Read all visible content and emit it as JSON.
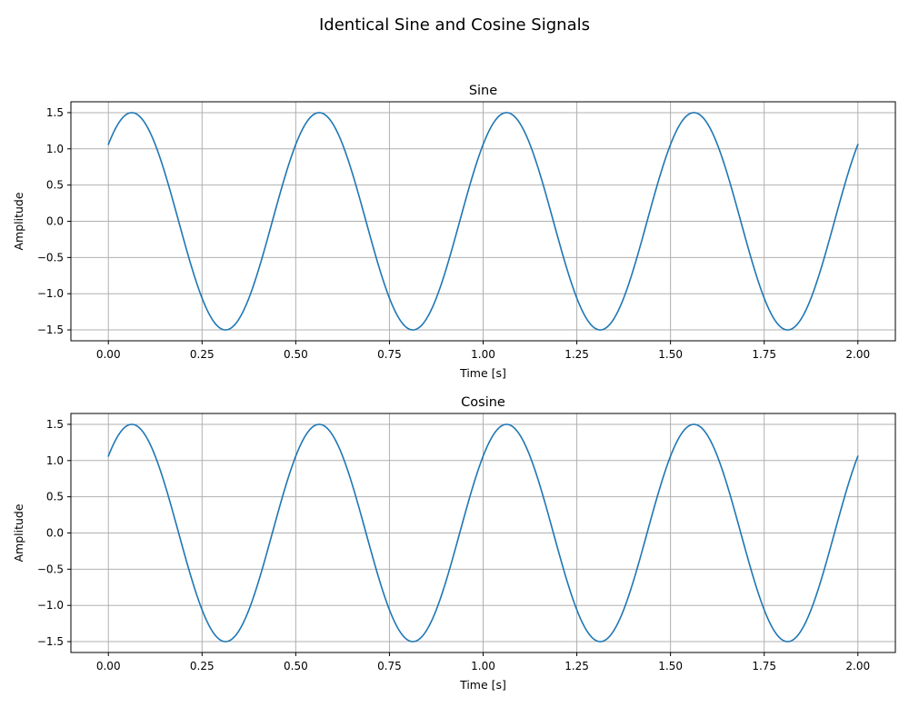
{
  "figure": {
    "suptitle": "Identical Sine and Cosine Signals"
  },
  "colors": {
    "series": "#1f77b4",
    "grid": "#b0b0b0",
    "axes": "#000000"
  },
  "chart_data": [
    {
      "type": "line",
      "title": "Sine",
      "xlabel": "Time [s]",
      "ylabel": "Amplitude",
      "xlim": [
        -0.1,
        2.1
      ],
      "ylim": [
        -1.65,
        1.65
      ],
      "grid": true,
      "xticks": [
        0.0,
        0.25,
        0.5,
        0.75,
        1.0,
        1.25,
        1.5,
        1.75,
        2.0
      ],
      "xtick_labels": [
        "0.00",
        "0.25",
        "0.50",
        "0.75",
        "1.00",
        "1.25",
        "1.50",
        "1.75",
        "2.00"
      ],
      "yticks": [
        -1.5,
        -1.0,
        -0.5,
        0.0,
        0.5,
        1.0,
        1.5
      ],
      "ytick_labels": [
        "−1.5",
        "−1.0",
        "−0.5",
        "0.0",
        "0.5",
        "1.0",
        "1.5"
      ],
      "series": [
        {
          "x_range": [
            0.0,
            2.0
          ],
          "function": "sin",
          "amplitude": 1.5,
          "frequency": 2,
          "phase": 0.785398
        }
      ]
    },
    {
      "type": "line",
      "title": "Cosine",
      "xlabel": "Time [s]",
      "ylabel": "Amplitude",
      "xlim": [
        -0.1,
        2.1
      ],
      "ylim": [
        -1.65,
        1.65
      ],
      "grid": true,
      "xticks": [
        0.0,
        0.25,
        0.5,
        0.75,
        1.0,
        1.25,
        1.5,
        1.75,
        2.0
      ],
      "xtick_labels": [
        "0.00",
        "0.25",
        "0.50",
        "0.75",
        "1.00",
        "1.25",
        "1.50",
        "1.75",
        "2.00"
      ],
      "yticks": [
        -1.5,
        -1.0,
        -0.5,
        0.0,
        0.5,
        1.0,
        1.5
      ],
      "ytick_labels": [
        "−1.5",
        "−1.0",
        "−0.5",
        "0.0",
        "0.5",
        "1.0",
        "1.5"
      ],
      "series": [
        {
          "x_range": [
            0.0,
            2.0
          ],
          "function": "cos",
          "amplitude": 1.5,
          "frequency": 2,
          "phase": -0.785398
        }
      ]
    }
  ]
}
